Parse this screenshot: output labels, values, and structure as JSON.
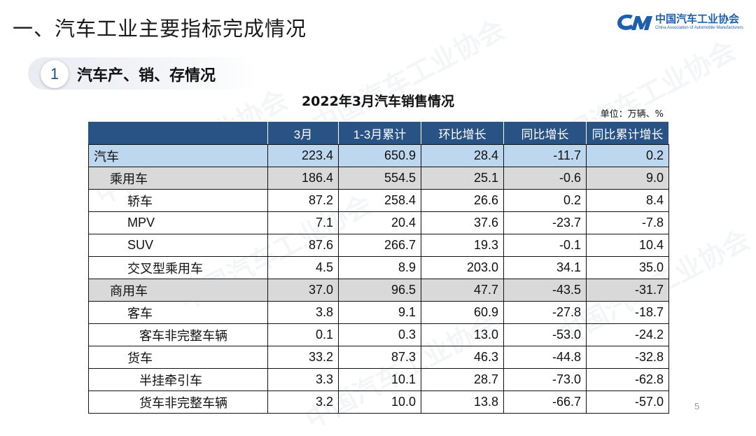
{
  "page": {
    "title": "一、汽车工业主要指标完成情况",
    "number": "5"
  },
  "logo": {
    "name_cn": "中国汽车工业协会",
    "name_en": "China Association of Automobile Manufacturers",
    "brand_color": "#1e5fae"
  },
  "section": {
    "number": "1",
    "title": "汽车产、销、存情况"
  },
  "table": {
    "title": "2022年3月汽车销售情况",
    "unit": "单位：万辆、%",
    "columns": [
      "",
      "3月",
      "1-3月累计",
      "环比增长",
      "同比增长",
      "同比累计增长"
    ],
    "header_color": "#2a5385",
    "rows": [
      {
        "name": "汽车",
        "level": 0,
        "style": "total",
        "values": [
          "223.4",
          "650.9",
          "28.4",
          "-11.7",
          "0.2"
        ]
      },
      {
        "name": "乘用车",
        "level": 1,
        "style": "group",
        "values": [
          "186.4",
          "554.5",
          "25.1",
          "-0.6",
          "9.0"
        ]
      },
      {
        "name": "轿车",
        "level": 2,
        "style": "plain",
        "values": [
          "87.2",
          "258.4",
          "26.6",
          "0.2",
          "8.4"
        ]
      },
      {
        "name": "MPV",
        "level": 2,
        "style": "plain",
        "values": [
          "7.1",
          "20.4",
          "37.6",
          "-23.7",
          "-7.8"
        ]
      },
      {
        "name": "SUV",
        "level": 2,
        "style": "plain",
        "values": [
          "87.6",
          "266.7",
          "19.3",
          "-0.1",
          "10.4"
        ]
      },
      {
        "name": "交叉型乘用车",
        "level": 2,
        "style": "plain",
        "values": [
          "4.5",
          "8.9",
          "203.0",
          "34.1",
          "35.0"
        ]
      },
      {
        "name": "商用车",
        "level": 1,
        "style": "group",
        "values": [
          "37.0",
          "96.5",
          "47.7",
          "-43.5",
          "-31.7"
        ]
      },
      {
        "name": "客车",
        "level": 2,
        "style": "plain",
        "values": [
          "3.8",
          "9.1",
          "60.9",
          "-27.8",
          "-18.7"
        ]
      },
      {
        "name": "客车非完整车辆",
        "level": 3,
        "style": "plain",
        "values": [
          "0.1",
          "0.3",
          "13.0",
          "-53.0",
          "-24.2"
        ]
      },
      {
        "name": "货车",
        "level": 2,
        "style": "plain",
        "values": [
          "33.2",
          "87.3",
          "46.3",
          "-44.8",
          "-32.8"
        ]
      },
      {
        "name": "半挂牵引车",
        "level": 3,
        "style": "plain",
        "values": [
          "3.3",
          "10.1",
          "28.7",
          "-73.0",
          "-62.8"
        ]
      },
      {
        "name": "货车非完整车辆",
        "level": 3,
        "style": "plain",
        "values": [
          "3.2",
          "10.0",
          "13.8",
          "-66.7",
          "-57.0"
        ]
      }
    ]
  }
}
